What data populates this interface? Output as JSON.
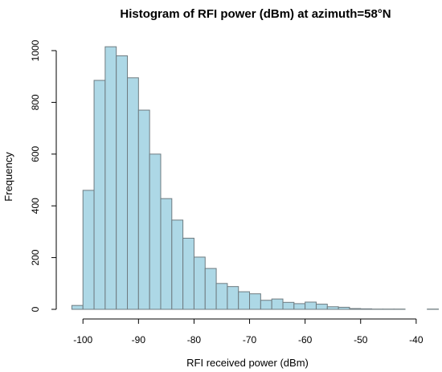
{
  "chart_data": {
    "type": "bar",
    "title": "Histogram of RFI power (dBm) at azimuth=58°N",
    "xlabel": "RFI received power (dBm)",
    "ylabel": "Frequency",
    "bar_color": "#add8e6",
    "bar_border_color": "#6e7b80",
    "grid": false,
    "legend": "none",
    "xlim": [
      -103,
      -36
    ],
    "ylim": [
      0,
      1000
    ],
    "x_ticks": [
      -100,
      -90,
      -80,
      -70,
      -60,
      -50,
      -40
    ],
    "x_tick_labels": [
      "-100",
      "-90",
      "-80",
      "-70",
      "-60",
      "-50",
      "-40"
    ],
    "y_ticks": [
      0,
      200,
      400,
      600,
      800,
      1000
    ],
    "y_tick_labels": [
      "0",
      "200",
      "400",
      "600",
      "800",
      "1000"
    ],
    "bins": [
      {
        "start": -102,
        "end": -100,
        "count": 15
      },
      {
        "start": -100,
        "end": -98,
        "count": 460
      },
      {
        "start": -98,
        "end": -96,
        "count": 885
      },
      {
        "start": -96,
        "end": -94,
        "count": 1015
      },
      {
        "start": -94,
        "end": -92,
        "count": 980
      },
      {
        "start": -92,
        "end": -90,
        "count": 895
      },
      {
        "start": -90,
        "end": -88,
        "count": 770
      },
      {
        "start": -88,
        "end": -86,
        "count": 600
      },
      {
        "start": -86,
        "end": -84,
        "count": 428
      },
      {
        "start": -84,
        "end": -82,
        "count": 345
      },
      {
        "start": -82,
        "end": -80,
        "count": 275
      },
      {
        "start": -80,
        "end": -78,
        "count": 202
      },
      {
        "start": -78,
        "end": -76,
        "count": 158
      },
      {
        "start": -76,
        "end": -74,
        "count": 100
      },
      {
        "start": -74,
        "end": -72,
        "count": 88
      },
      {
        "start": -72,
        "end": -70,
        "count": 68
      },
      {
        "start": -70,
        "end": -68,
        "count": 60
      },
      {
        "start": -68,
        "end": -66,
        "count": 35
      },
      {
        "start": -66,
        "end": -64,
        "count": 40
      },
      {
        "start": -64,
        "end": -62,
        "count": 27
      },
      {
        "start": -62,
        "end": -60,
        "count": 22
      },
      {
        "start": -60,
        "end": -58,
        "count": 28
      },
      {
        "start": -58,
        "end": -56,
        "count": 20
      },
      {
        "start": -56,
        "end": -54,
        "count": 10
      },
      {
        "start": -54,
        "end": -52,
        "count": 8
      },
      {
        "start": -52,
        "end": -50,
        "count": 3
      },
      {
        "start": -50,
        "end": -48,
        "count": 2
      },
      {
        "start": -48,
        "end": -46,
        "count": 1
      },
      {
        "start": -46,
        "end": -44,
        "count": 1
      },
      {
        "start": -44,
        "end": -42,
        "count": 1
      },
      {
        "start": -42,
        "end": -40,
        "count": 0
      },
      {
        "start": -40,
        "end": -38,
        "count": 0
      },
      {
        "start": -38,
        "end": -36,
        "count": 1
      }
    ]
  }
}
